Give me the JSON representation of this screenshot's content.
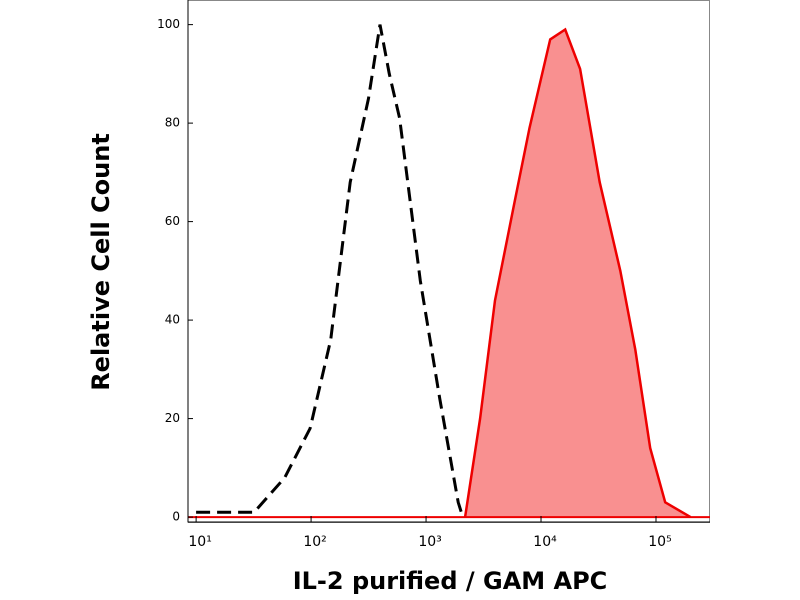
{
  "chart_data": {
    "type": "histogram-overlay",
    "xlabel": "IL-2 purified / GAM APC",
    "ylabel": "Relative Cell Count",
    "xscale": "log",
    "xlim": [
      8.5,
      295000
    ],
    "xticks": [
      {
        "value": 10,
        "label": "10¹"
      },
      {
        "value": 100,
        "label": "10²"
      },
      {
        "value": 1000,
        "label": "10³"
      },
      {
        "value": 10000,
        "label": "10⁴"
      },
      {
        "value": 100000,
        "label": "10⁵"
      }
    ],
    "ylim": [
      -1,
      105
    ],
    "yticks": [
      0,
      20,
      40,
      60,
      80,
      100
    ],
    "series": [
      {
        "color": "#000000",
        "style": "dashed",
        "fill": false,
        "x": [
          10,
          32,
          59,
          98,
          148,
          219,
          316,
          398,
          479,
          589,
          891,
          1318,
          1905,
          2089
        ],
        "values": [
          1,
          1,
          8,
          18,
          36,
          68,
          85,
          100,
          90,
          81,
          48,
          24,
          3,
          0
        ]
      },
      {
        "color": "#ee0000",
        "style": "solid",
        "fill": true,
        "fill_color": "#f99090",
        "x": [
          2188,
          2951,
          3981,
          5888,
          7943,
          12023,
          16218,
          21878,
          32359,
          48978,
          66069,
          89125,
          120226,
          199526
        ],
        "values": [
          0,
          20,
          44,
          64,
          79,
          97,
          99,
          91,
          68,
          50,
          34,
          14,
          3,
          0
        ]
      }
    ]
  }
}
